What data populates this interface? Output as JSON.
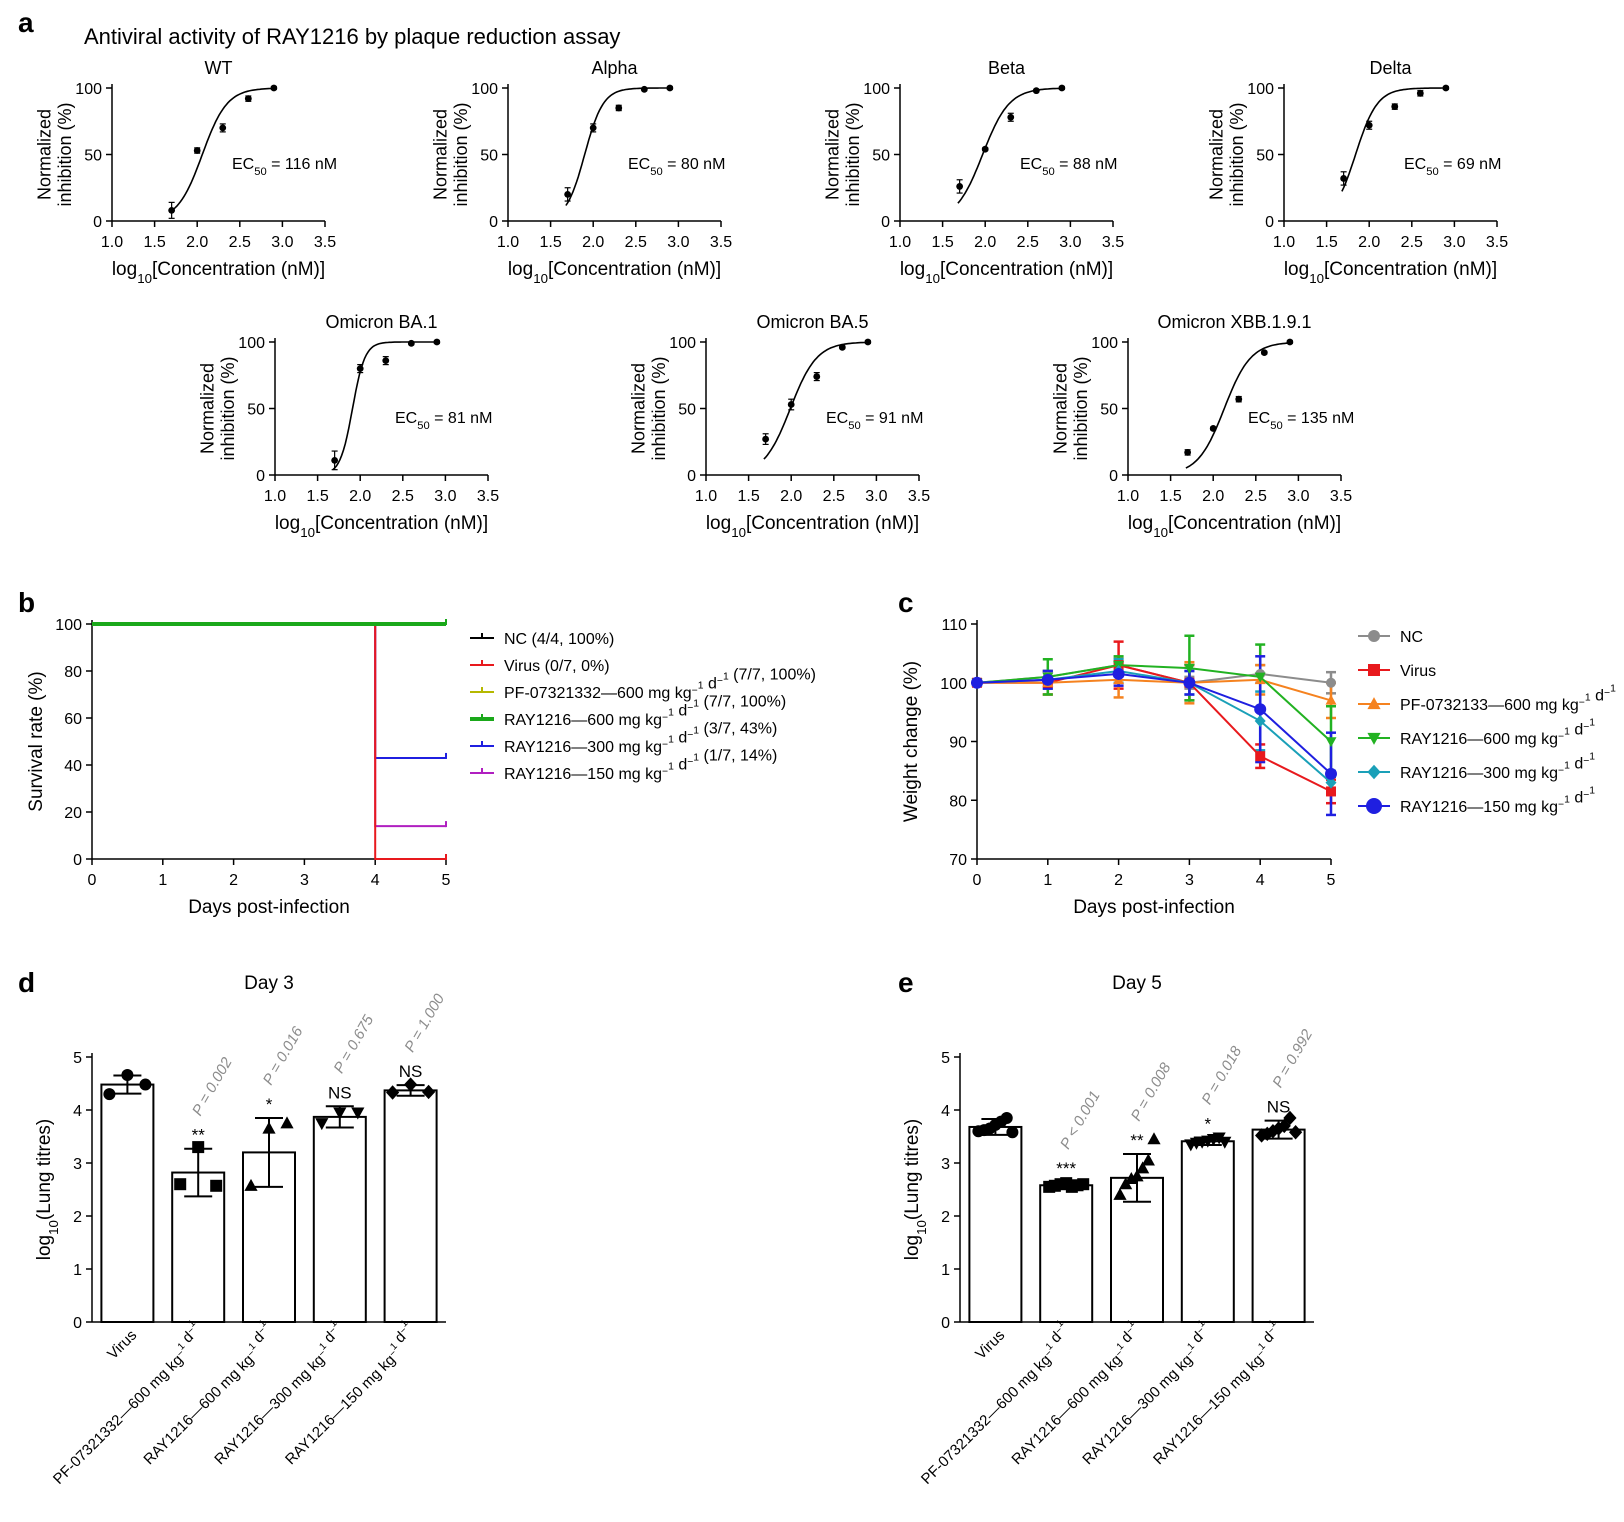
{
  "figure": {
    "panel_labels": {
      "a": "a",
      "b": "b",
      "c": "c",
      "d": "d",
      "e": "e"
    },
    "title_a": "Antiviral activity of RAY1216 by plaque reduction assay"
  },
  "chart_data": [
    {
      "panel": "a",
      "type": "scatter",
      "title": "WT",
      "ylabel": "Normalized inhibition (%)",
      "xlabel": "log10[Concentration (nM)]",
      "xlim": [
        1.0,
        3.5
      ],
      "ylim": [
        0,
        100
      ],
      "xticks": [
        "1.0",
        "1.5",
        "2.0",
        "2.5",
        "3.0",
        "3.5"
      ],
      "yticks": [
        "0",
        "50",
        "100"
      ],
      "x": [
        1.7,
        2.0,
        2.3,
        2.6,
        2.9
      ],
      "y": [
        8,
        53,
        70,
        92,
        100
      ],
      "err": [
        6,
        2,
        3,
        2,
        1
      ],
      "fit": {
        "ec50_log": 2.06,
        "hill": 3.0
      },
      "ec50_label": "EC50 = 116 nM",
      "ec50_value": "116"
    },
    {
      "panel": "a",
      "type": "scatter",
      "title": "Alpha",
      "ylabel": "Normalized inhibition (%)",
      "xlabel": "log10[Concentration (nM)]",
      "xlim": [
        1.0,
        3.5
      ],
      "ylim": [
        0,
        100
      ],
      "xticks": [
        "1.0",
        "1.5",
        "2.0",
        "2.5",
        "3.0",
        "3.5"
      ],
      "yticks": [
        "0",
        "50",
        "100"
      ],
      "x": [
        1.7,
        2.0,
        2.3,
        2.6,
        2.9
      ],
      "y": [
        20,
        70,
        85,
        99,
        100
      ],
      "err": [
        5,
        3,
        2,
        1,
        1
      ],
      "fit": {
        "ec50_log": 1.9,
        "hill": 4.0
      },
      "ec50_label": "EC50 = 80 nM",
      "ec50_value": "80"
    },
    {
      "panel": "a",
      "type": "scatter",
      "title": "Beta",
      "ylabel": "Normalized inhibition (%)",
      "xlabel": "log10[Concentration (nM)]",
      "xlim": [
        1.0,
        3.5
      ],
      "ylim": [
        0,
        100
      ],
      "xticks": [
        "1.0",
        "1.5",
        "2.0",
        "2.5",
        "3.0",
        "3.5"
      ],
      "yticks": [
        "0",
        "50",
        "100"
      ],
      "x": [
        1.7,
        2.0,
        2.3,
        2.6,
        2.9
      ],
      "y": [
        26,
        54,
        78,
        98,
        100
      ],
      "err": [
        5,
        1,
        3,
        1,
        1
      ],
      "fit": {
        "ec50_log": 1.97,
        "hill": 2.8
      },
      "ec50_label": "EC50 = 88 nM",
      "ec50_value": "88"
    },
    {
      "panel": "a",
      "type": "scatter",
      "title": "Delta",
      "ylabel": "Normalized inhibition (%)",
      "xlabel": "log10[Concentration (nM)]",
      "xlim": [
        1.0,
        3.5
      ],
      "ylim": [
        0,
        100
      ],
      "xticks": [
        "1.0",
        "1.5",
        "2.0",
        "2.5",
        "3.0",
        "3.5"
      ],
      "yticks": [
        "0",
        "50",
        "100"
      ],
      "x": [
        1.7,
        2.0,
        2.3,
        2.6,
        2.9
      ],
      "y": [
        32,
        72,
        86,
        96,
        100
      ],
      "err": [
        5,
        3,
        2,
        2,
        1
      ],
      "fit": {
        "ec50_log": 1.84,
        "hill": 3.4
      },
      "ec50_label": "EC50 = 69 nM",
      "ec50_value": "69"
    },
    {
      "panel": "a",
      "type": "scatter",
      "title": "Omicron BA.1",
      "ylabel": "Normalized inhibition (%)",
      "xlabel": "log10[Concentration (nM)]",
      "xlim": [
        1.0,
        3.5
      ],
      "ylim": [
        0,
        100
      ],
      "xticks": [
        "1.0",
        "1.5",
        "2.0",
        "2.5",
        "3.0",
        "3.5"
      ],
      "yticks": [
        "0",
        "50",
        "100"
      ],
      "x": [
        1.7,
        2.0,
        2.3,
        2.6,
        2.9
      ],
      "y": [
        11,
        80,
        86,
        99,
        100
      ],
      "err": [
        7,
        3,
        3,
        1,
        1
      ],
      "fit": {
        "ec50_log": 1.91,
        "hill": 6.0
      },
      "ec50_label": "EC50 = 81 nM",
      "ec50_value": "81"
    },
    {
      "panel": "a",
      "type": "scatter",
      "title": "Omicron BA.5",
      "ylabel": "Normalized inhibition (%)",
      "xlabel": "log10[Concentration (nM)]",
      "xlim": [
        1.0,
        3.5
      ],
      "ylim": [
        0,
        100
      ],
      "xticks": [
        "1.0",
        "1.5",
        "2.0",
        "2.5",
        "3.0",
        "3.5"
      ],
      "yticks": [
        "0",
        "50",
        "100"
      ],
      "x": [
        1.7,
        2.0,
        2.3,
        2.6,
        2.9
      ],
      "y": [
        27,
        53,
        74,
        96,
        100
      ],
      "err": [
        4,
        4,
        3,
        1,
        1
      ],
      "fit": {
        "ec50_log": 1.99,
        "hill": 2.8
      },
      "ec50_label": "EC50 = 91 nM",
      "ec50_value": "91"
    },
    {
      "panel": "a",
      "type": "scatter",
      "title": "Omicron XBB.1.9.1",
      "ylabel": "Normalized inhibition (%)",
      "xlabel": "log10[Concentration (nM)]",
      "xlim": [
        1.0,
        3.5
      ],
      "ylim": [
        0,
        100
      ],
      "xticks": [
        "1.0",
        "1.5",
        "2.0",
        "2.5",
        "3.0",
        "3.5"
      ],
      "yticks": [
        "0",
        "50",
        "100"
      ],
      "x": [
        1.7,
        2.0,
        2.3,
        2.6,
        2.9
      ],
      "y": [
        17,
        35,
        57,
        92,
        100
      ],
      "err": [
        2,
        1,
        2,
        1,
        1
      ],
      "fit": {
        "ec50_log": 2.13,
        "hill": 2.8
      },
      "ec50_label": "EC50 = 135 nM",
      "ec50_value": "135"
    },
    {
      "panel": "b",
      "type": "line",
      "ylabel": "Survival rate (%)",
      "xlabel": "Days post-infection",
      "xlim": [
        0,
        5
      ],
      "ylim": [
        0,
        100
      ],
      "xticks": [
        "0",
        "1",
        "2",
        "3",
        "4",
        "5"
      ],
      "yticks": [
        "0",
        "20",
        "40",
        "60",
        "80",
        "100"
      ],
      "series": [
        {
          "name": "NC (4/4, 100%)",
          "color": "#000000",
          "steps": [
            [
              0,
              100
            ],
            [
              5,
              100
            ]
          ]
        },
        {
          "name": "Virus (0/7, 0%)",
          "color": "#e8191d",
          "steps": [
            [
              0,
              100
            ],
            [
              4,
              100
            ],
            [
              4,
              0
            ],
            [
              5,
              0
            ]
          ]
        },
        {
          "name": "PF-07321332—600 mg kg⁻¹ d⁻¹ (7/7, 100%)",
          "color": "#b5b800",
          "steps": [
            [
              0,
              100
            ],
            [
              5,
              100
            ]
          ]
        },
        {
          "name": "RAY1216—600 mg kg⁻¹ d⁻¹ (7/7, 100%)",
          "color": "#1aa81a",
          "steps": [
            [
              0,
              100
            ],
            [
              5,
              100
            ]
          ]
        },
        {
          "name": "RAY1216—300 mg kg⁻¹ d⁻¹ (3/7, 43%)",
          "color": "#1f1fe0",
          "steps": [
            [
              0,
              100
            ],
            [
              4,
              100
            ],
            [
              4,
              43
            ],
            [
              5,
              43
            ]
          ]
        },
        {
          "name": "RAY1216—150 mg kg⁻¹ d⁻¹ (1/7, 14%)",
          "color": "#b01fc0",
          "steps": [
            [
              0,
              100
            ],
            [
              4,
              100
            ],
            [
              4,
              14
            ],
            [
              5,
              14
            ]
          ]
        }
      ]
    },
    {
      "panel": "c",
      "type": "line",
      "ylabel": "Weight change (%)",
      "xlabel": "Days post-infection",
      "xlim": [
        0,
        5
      ],
      "ylim": [
        70,
        110
      ],
      "xticks": [
        "0",
        "1",
        "2",
        "3",
        "4",
        "5"
      ],
      "yticks": [
        "70",
        "80",
        "90",
        "100",
        "110"
      ],
      "x": [
        0,
        1,
        2,
        3,
        4,
        5
      ],
      "series": [
        {
          "name": "NC",
          "color": "#8c8c8c",
          "marker": "circle",
          "values": [
            100,
            101,
            103,
            100,
            101.5,
            100
          ],
          "err": [
            0,
            1,
            1.2,
            1,
            1.5,
            1.8
          ]
        },
        {
          "name": "Virus",
          "color": "#e8191d",
          "marker": "square",
          "values": [
            100,
            100,
            103,
            100,
            87.5,
            81.5
          ],
          "err": [
            0,
            2,
            4,
            3,
            2,
            2
          ]
        },
        {
          "name": "PF-0732133—600 mg kg⁻¹ d⁻¹",
          "color": "#f5821f",
          "marker": "triangle-up",
          "values": [
            100,
            100,
            100.5,
            100,
            100.5,
            97
          ],
          "err": [
            0,
            2,
            3,
            3.5,
            2.5,
            3
          ]
        },
        {
          "name": "RAY1216—600 mg kg⁻¹ d⁻¹",
          "color": "#22b222",
          "marker": "triangle-down",
          "values": [
            100,
            101,
            103,
            102.5,
            101,
            90
          ],
          "err": [
            0,
            3,
            1.5,
            5.5,
            5.5,
            6
          ]
        },
        {
          "name": "RAY1216—300 mg kg⁻¹ d⁻¹",
          "color": "#1aa0b8",
          "marker": "diamond",
          "values": [
            100,
            100.5,
            102,
            100,
            93.5,
            83
          ],
          "err": [
            0,
            1.5,
            2,
            2,
            5,
            2
          ]
        },
        {
          "name": "RAY1216—150 mg kg⁻¹ d⁻¹",
          "color": "#1f1fe0",
          "marker": "circle",
          "values": [
            100,
            100.5,
            101.5,
            100,
            95.5,
            84.5
          ],
          "err": [
            0,
            1.5,
            2,
            2,
            9,
            7
          ]
        }
      ]
    },
    {
      "panel": "d",
      "type": "bar",
      "title": "Day 3",
      "ylabel": "log10(Lung titres)",
      "ylim": [
        0,
        5
      ],
      "yticks": [
        "0",
        "1",
        "2",
        "3",
        "4",
        "5"
      ],
      "categories": [
        "Virus",
        "PF-07321332—600 mg kg⁻¹ d⁻¹",
        "RAY1216—600 mg kg⁻¹ d⁻¹",
        "RAY1216—300 mg kg⁻¹ d⁻¹",
        "RAY1216—150 mg kg⁻¹ d⁻¹"
      ],
      "markers": [
        "circle",
        "square",
        "triangle-up",
        "triangle-down",
        "diamond"
      ],
      "values": [
        4.48,
        2.82,
        3.2,
        3.87,
        4.37
      ],
      "err": [
        0.17,
        0.45,
        0.65,
        0.2,
        0.1
      ],
      "points": [
        [
          4.3,
          4.66,
          4.48
        ],
        [
          2.6,
          3.3,
          2.57
        ],
        [
          2.57,
          3.65,
          3.75
        ],
        [
          3.75,
          3.95,
          3.95
        ],
        [
          4.33,
          4.48,
          4.34
        ]
      ],
      "significance": [
        "",
        "**",
        "*",
        "NS",
        "NS"
      ],
      "p_values": [
        "",
        "P = 0.002",
        "P = 0.016",
        "P = 0.675",
        "P = 1.000"
      ]
    },
    {
      "panel": "e",
      "type": "bar",
      "title": "Day 5",
      "ylabel": "log10(Lung titres)",
      "ylim": [
        0,
        5
      ],
      "yticks": [
        "0",
        "1",
        "2",
        "3",
        "4",
        "5"
      ],
      "categories": [
        "Virus",
        "PF-07321332—600 mg kg⁻¹ d⁻¹",
        "RAY1216—600 mg kg⁻¹ d⁻¹",
        "RAY1216—300 mg kg⁻¹ d⁻¹",
        "RAY1216—150 mg kg⁻¹ d⁻¹"
      ],
      "markers": [
        "circle",
        "square",
        "triangle-up",
        "triangle-down",
        "diamond"
      ],
      "values": [
        3.68,
        2.58,
        2.72,
        3.41,
        3.63
      ],
      "err": [
        0.15,
        0.06,
        0.45,
        0.07,
        0.17
      ],
      "points": [
        [
          3.6,
          3.62,
          3.65,
          3.72,
          3.78,
          3.85,
          3.58
        ],
        [
          2.55,
          2.57,
          2.6,
          2.62,
          2.55,
          2.58,
          2.6
        ],
        [
          2.4,
          2.6,
          2.7,
          2.75,
          2.9,
          3.05,
          3.45
        ],
        [
          3.35,
          3.38,
          3.4,
          3.42,
          3.45,
          3.48,
          3.4
        ],
        [
          3.52,
          3.55,
          3.6,
          3.65,
          3.7,
          3.85,
          3.58
        ]
      ],
      "significance": [
        "",
        "***",
        "**",
        "*",
        "NS"
      ],
      "p_values": [
        "",
        "P < 0.001",
        "P = 0.008",
        "P = 0.018",
        "P = 0.992"
      ]
    }
  ]
}
